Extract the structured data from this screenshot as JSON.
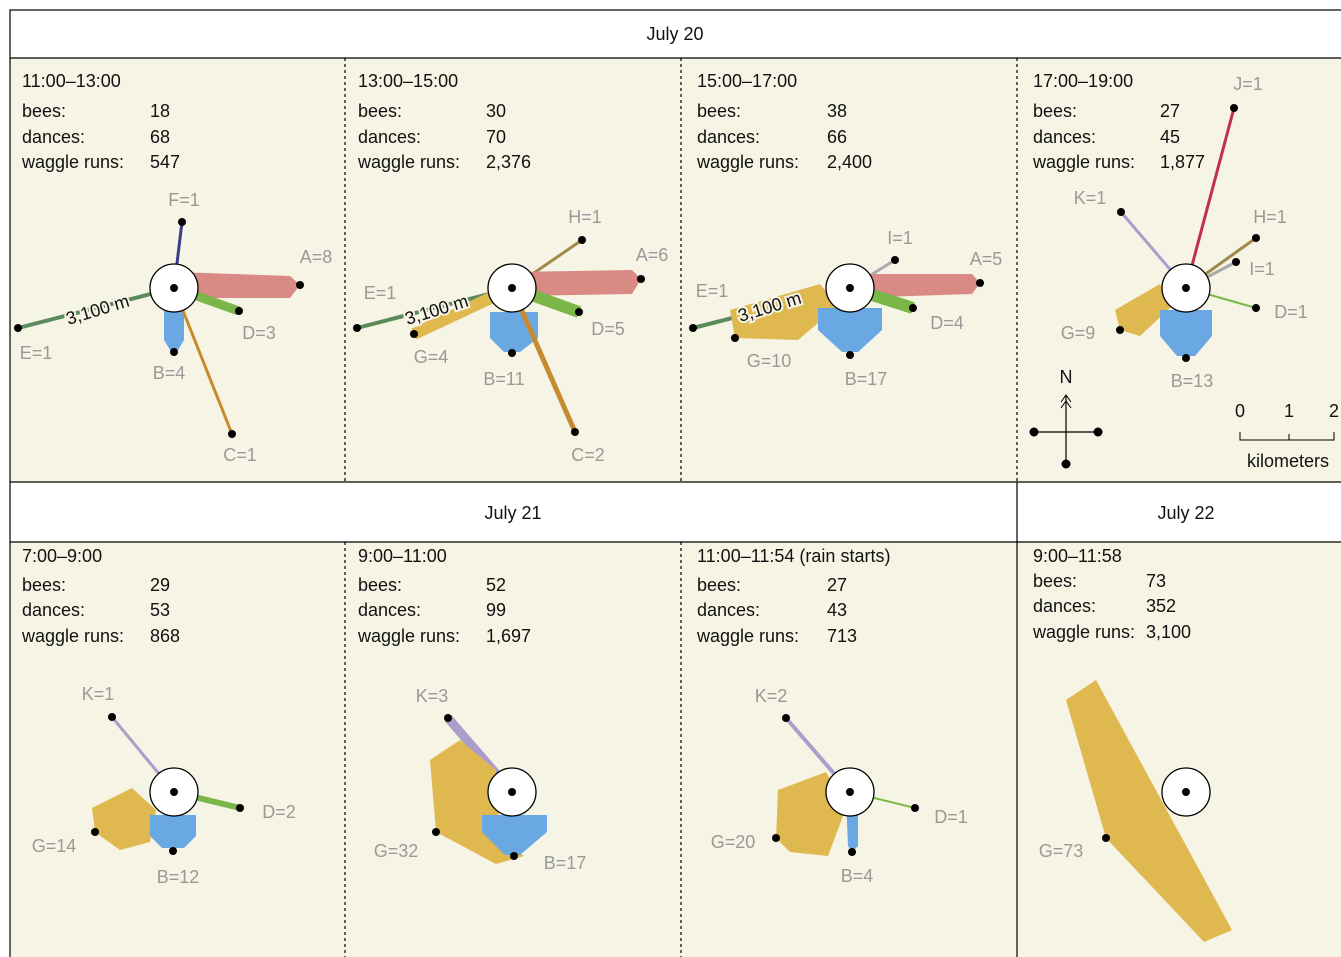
{
  "days": [
    "July 20",
    "July 21",
    "July 22"
  ],
  "panels": [
    {
      "time": "11:00–13:00",
      "stats": [
        {
          "label": "bees:",
          "value": "18"
        },
        {
          "label": "dances:",
          "value": "68"
        },
        {
          "label": "waggle runs:",
          "value": "547"
        }
      ],
      "sites": [
        "F=1",
        "A=8",
        "E=1",
        "D=3",
        "B=4",
        "C=1"
      ],
      "distance": "3,100 m"
    },
    {
      "time": "13:00–15:00",
      "stats": [
        {
          "label": "bees:",
          "value": "30"
        },
        {
          "label": "dances:",
          "value": "70"
        },
        {
          "label": "waggle runs:",
          "value": "2,376"
        }
      ],
      "sites": [
        "H=1",
        "A=6",
        "E=1",
        "G=4",
        "D=5",
        "B=11",
        "C=2"
      ],
      "distance": "3,100 m"
    },
    {
      "time": "15:00–17:00",
      "stats": [
        {
          "label": "bees:",
          "value": "38"
        },
        {
          "label": "dances:",
          "value": "66"
        },
        {
          "label": "waggle runs:",
          "value": "2,400"
        }
      ],
      "sites": [
        "I=1",
        "A=5",
        "E=1",
        "G=10",
        "D=4",
        "B=17"
      ],
      "distance": "3,100 m"
    },
    {
      "time": "17:00–19:00",
      "stats": [
        {
          "label": "bees:",
          "value": "27"
        },
        {
          "label": "dances:",
          "value": "45"
        },
        {
          "label": "waggle runs:",
          "value": "1,877"
        }
      ],
      "sites": [
        "J=1",
        "K=1",
        "H=1",
        "I=1",
        "D=1",
        "G=9",
        "B=13"
      ]
    },
    {
      "time": "7:00–9:00",
      "stats": [
        {
          "label": "bees:",
          "value": "29"
        },
        {
          "label": "dances:",
          "value": "53"
        },
        {
          "label": "waggle runs:",
          "value": "868"
        }
      ],
      "sites": [
        "K=1",
        "D=2",
        "G=14",
        "B=12"
      ]
    },
    {
      "time": "9:00–11:00",
      "stats": [
        {
          "label": "bees:",
          "value": "52"
        },
        {
          "label": "dances:",
          "value": "99"
        },
        {
          "label": "waggle runs:",
          "value": "1,697"
        }
      ],
      "sites": [
        "K=3",
        "G=32",
        "B=17"
      ]
    },
    {
      "time": "11:00–11:54 (rain starts)",
      "stats": [
        {
          "label": "bees:",
          "value": "27"
        },
        {
          "label": "dances:",
          "value": "43"
        },
        {
          "label": "waggle runs:",
          "value": "713"
        }
      ],
      "sites": [
        "K=2",
        "D=1",
        "G=20",
        "B=4"
      ]
    },
    {
      "time": "9:00–11:58",
      "stats": [
        {
          "label": "bees:",
          "value": "73"
        },
        {
          "label": "dances:",
          "value": "352"
        },
        {
          "label": "waggle runs:",
          "value": "3,100"
        }
      ],
      "sites": [
        "G=73"
      ]
    }
  ],
  "compass": "N",
  "scale": {
    "ticks": [
      "0",
      "1",
      "2"
    ],
    "unit": "kilometers"
  }
}
